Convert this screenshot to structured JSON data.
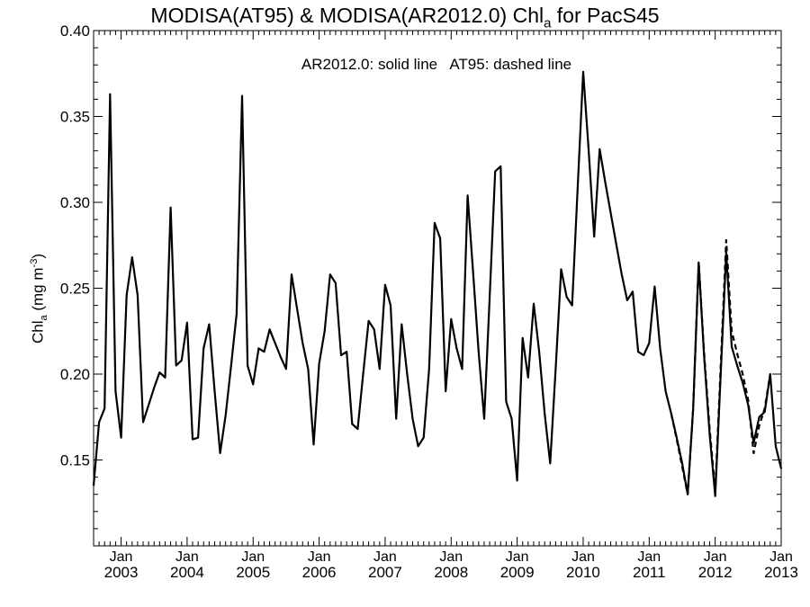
{
  "chart_data": {
    "type": "line",
    "title": {
      "main": "MODISA(AT95) & MODISA(AR2012.0)  Chl",
      "sub": "a",
      "tail": " for PacS45"
    },
    "annotation": "AR2012.0: solid line   AT95: dashed line",
    "ylabel": {
      "main": "Chl",
      "sub": "a",
      "unit_prefix": " (mg m",
      "unit_sup": "-3",
      "unit_suffix": ")"
    },
    "xlim": [
      "2002-08",
      "2013-01"
    ],
    "ylim": [
      0.1,
      0.4
    ],
    "x_tick_labels": [
      {
        "x": "2003-01",
        "month": "Jan",
        "year": "2003"
      },
      {
        "x": "2004-01",
        "month": "Jan",
        "year": "2004"
      },
      {
        "x": "2005-01",
        "month": "Jan",
        "year": "2005"
      },
      {
        "x": "2006-01",
        "month": "Jan",
        "year": "2006"
      },
      {
        "x": "2007-01",
        "month": "Jan",
        "year": "2007"
      },
      {
        "x": "2008-01",
        "month": "Jan",
        "year": "2008"
      },
      {
        "x": "2009-01",
        "month": "Jan",
        "year": "2009"
      },
      {
        "x": "2010-01",
        "month": "Jan",
        "year": "2010"
      },
      {
        "x": "2011-01",
        "month": "Jan",
        "year": "2011"
      },
      {
        "x": "2012-01",
        "month": "Jan",
        "year": "2012"
      },
      {
        "x": "2013-01",
        "month": "Jan",
        "year": "2013"
      }
    ],
    "y_ticks": [
      0.15,
      0.2,
      0.25,
      0.3,
      0.35,
      0.4
    ],
    "y_tick_labels": [
      "0.15",
      "0.20",
      "0.25",
      "0.30",
      "0.35",
      "0.40"
    ],
    "series": [
      {
        "style": "solid",
        "points": [
          [
            "2002-08",
            0.135
          ],
          [
            "2002-09",
            0.172
          ],
          [
            "2002-10",
            0.18
          ],
          [
            "2002-11",
            0.363
          ],
          [
            "2002-12",
            0.19
          ],
          [
            "2003-01",
            0.163
          ],
          [
            "2003-02",
            0.246
          ],
          [
            "2003-03",
            0.268
          ],
          [
            "2003-04",
            0.246
          ],
          [
            "2003-05",
            0.172
          ],
          [
            "2003-06",
            0.182
          ],
          [
            "2003-07",
            0.192
          ],
          [
            "2003-08",
            0.201
          ],
          [
            "2003-09",
            0.198
          ],
          [
            "2003-10",
            0.297
          ],
          [
            "2003-11",
            0.205
          ],
          [
            "2003-12",
            0.208
          ],
          [
            "2004-01",
            0.23
          ],
          [
            "2004-02",
            0.162
          ],
          [
            "2004-03",
            0.163
          ],
          [
            "2004-04",
            0.215
          ],
          [
            "2004-05",
            0.229
          ],
          [
            "2004-06",
            0.19
          ],
          [
            "2004-07",
            0.154
          ],
          [
            "2004-08",
            0.176
          ],
          [
            "2004-09",
            0.205
          ],
          [
            "2004-10",
            0.235
          ],
          [
            "2004-11",
            0.362
          ],
          [
            "2004-12",
            0.205
          ],
          [
            "2005-01",
            0.194
          ],
          [
            "2005-02",
            0.215
          ],
          [
            "2005-03",
            0.213
          ],
          [
            "2005-04",
            0.226
          ],
          [
            "2005-05",
            0.218
          ],
          [
            "2005-06",
            0.21
          ],
          [
            "2005-07",
            0.203
          ],
          [
            "2005-08",
            0.258
          ],
          [
            "2005-09",
            0.238
          ],
          [
            "2005-10",
            0.218
          ],
          [
            "2005-11",
            0.203
          ],
          [
            "2005-12",
            0.159
          ],
          [
            "2006-01",
            0.206
          ],
          [
            "2006-02",
            0.225
          ],
          [
            "2006-03",
            0.258
          ],
          [
            "2006-04",
            0.253
          ],
          [
            "2006-05",
            0.211
          ],
          [
            "2006-06",
            0.213
          ],
          [
            "2006-07",
            0.171
          ],
          [
            "2006-08",
            0.168
          ],
          [
            "2006-09",
            0.2
          ],
          [
            "2006-10",
            0.231
          ],
          [
            "2006-11",
            0.226
          ],
          [
            "2006-12",
            0.203
          ],
          [
            "2007-01",
            0.252
          ],
          [
            "2007-02",
            0.24
          ],
          [
            "2007-03",
            0.174
          ],
          [
            "2007-04",
            0.229
          ],
          [
            "2007-05",
            0.2
          ],
          [
            "2007-06",
            0.174
          ],
          [
            "2007-07",
            0.158
          ],
          [
            "2007-08",
            0.163
          ],
          [
            "2007-09",
            0.203
          ],
          [
            "2007-10",
            0.288
          ],
          [
            "2007-11",
            0.279
          ],
          [
            "2007-12",
            0.19
          ],
          [
            "2008-01",
            0.232
          ],
          [
            "2008-02",
            0.215
          ],
          [
            "2008-03",
            0.203
          ],
          [
            "2008-04",
            0.304
          ],
          [
            "2008-05",
            0.259
          ],
          [
            "2008-06",
            0.213
          ],
          [
            "2008-07",
            0.174
          ],
          [
            "2008-08",
            0.245
          ],
          [
            "2008-09",
            0.318
          ],
          [
            "2008-10",
            0.321
          ],
          [
            "2008-11",
            0.184
          ],
          [
            "2008-12",
            0.174
          ],
          [
            "2009-01",
            0.138
          ],
          [
            "2009-02",
            0.221
          ],
          [
            "2009-03",
            0.198
          ],
          [
            "2009-04",
            0.241
          ],
          [
            "2009-05",
            0.213
          ],
          [
            "2009-06",
            0.177
          ],
          [
            "2009-07",
            0.148
          ],
          [
            "2009-08",
            0.203
          ],
          [
            "2009-09",
            0.261
          ],
          [
            "2009-10",
            0.245
          ],
          [
            "2009-11",
            0.24
          ],
          [
            "2009-12",
            0.309
          ],
          [
            "2010-01",
            0.376
          ],
          [
            "2010-02",
            0.33
          ],
          [
            "2010-03",
            0.28
          ],
          [
            "2010-04",
            0.331
          ],
          [
            "2010-05",
            0.312
          ],
          [
            "2010-06",
            0.294
          ],
          [
            "2010-07",
            0.276
          ],
          [
            "2010-08",
            0.258
          ],
          [
            "2010-09",
            0.243
          ],
          [
            "2010-10",
            0.248
          ],
          [
            "2010-11",
            0.213
          ],
          [
            "2010-12",
            0.211
          ],
          [
            "2011-01",
            0.218
          ],
          [
            "2011-02",
            0.251
          ],
          [
            "2011-03",
            0.215
          ],
          [
            "2011-04",
            0.19
          ],
          [
            "2011-05",
            0.177
          ],
          [
            "2011-06",
            0.163
          ],
          [
            "2011-07",
            0.148
          ],
          [
            "2011-08",
            0.13
          ],
          [
            "2011-09",
            0.18
          ],
          [
            "2011-10",
            0.265
          ],
          [
            "2011-11",
            0.21
          ],
          [
            "2011-12",
            0.165
          ],
          [
            "2012-01",
            0.129
          ],
          [
            "2012-02",
            0.2
          ],
          [
            "2012-03",
            0.271
          ],
          [
            "2012-04",
            0.216
          ],
          [
            "2012-05",
            0.205
          ],
          [
            "2012-06",
            0.195
          ],
          [
            "2012-07",
            0.182
          ],
          [
            "2012-08",
            0.16
          ],
          [
            "2012-09",
            0.175
          ],
          [
            "2012-10",
            0.178
          ],
          [
            "2012-11",
            0.2
          ],
          [
            "2012-12",
            0.158
          ],
          [
            "2013-01",
            0.145
          ]
        ]
      },
      {
        "style": "dashed",
        "points": [
          [
            "2011-05",
            0.177
          ],
          [
            "2011-06",
            0.162
          ],
          [
            "2011-07",
            0.146
          ],
          [
            "2011-08",
            0.13
          ],
          [
            "2011-09",
            0.18
          ],
          [
            "2011-10",
            0.265
          ],
          [
            "2011-11",
            0.212
          ],
          [
            "2011-12",
            0.168
          ],
          [
            "2012-01",
            0.132
          ],
          [
            "2012-02",
            0.205
          ],
          [
            "2012-03",
            0.278
          ],
          [
            "2012-04",
            0.225
          ],
          [
            "2012-05",
            0.212
          ],
          [
            "2012-06",
            0.2
          ],
          [
            "2012-07",
            0.185
          ],
          [
            "2012-08",
            0.154
          ],
          [
            "2012-09",
            0.17
          ],
          [
            "2012-10",
            0.18
          ],
          [
            "2012-11",
            0.2
          ]
        ]
      }
    ],
    "grid": false,
    "legend": "none"
  }
}
